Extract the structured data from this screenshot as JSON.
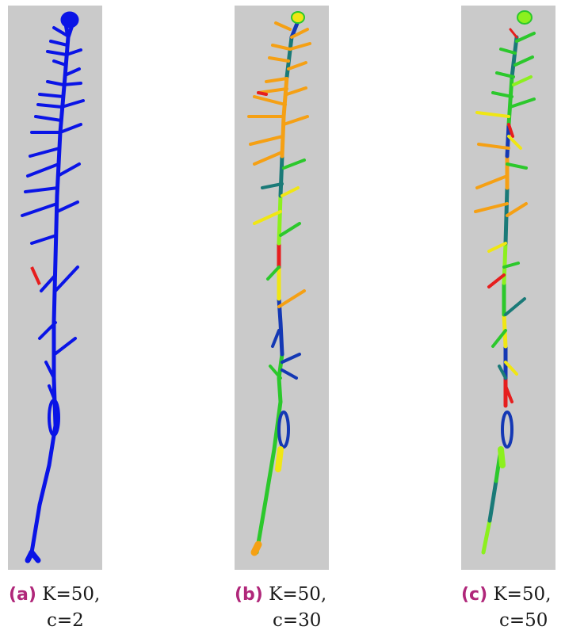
{
  "panels": [
    {
      "label": "(a)",
      "line1": "K=50,",
      "line2": "c=2"
    },
    {
      "label": "(b)",
      "line1": "K=50,",
      "line2": "c=30"
    },
    {
      "label": "(c)",
      "line1": "K=50,",
      "line2": "c=50"
    }
  ],
  "colors": {
    "background": "#cacaca",
    "blue": "#0a14e6",
    "dark_blue": "#1438b4",
    "teal": "#1a7a78",
    "green": "#2cc82c",
    "lime": "#8cf01e",
    "yellow": "#f0e614",
    "orange": "#f5a014",
    "red": "#e61e1e"
  }
}
